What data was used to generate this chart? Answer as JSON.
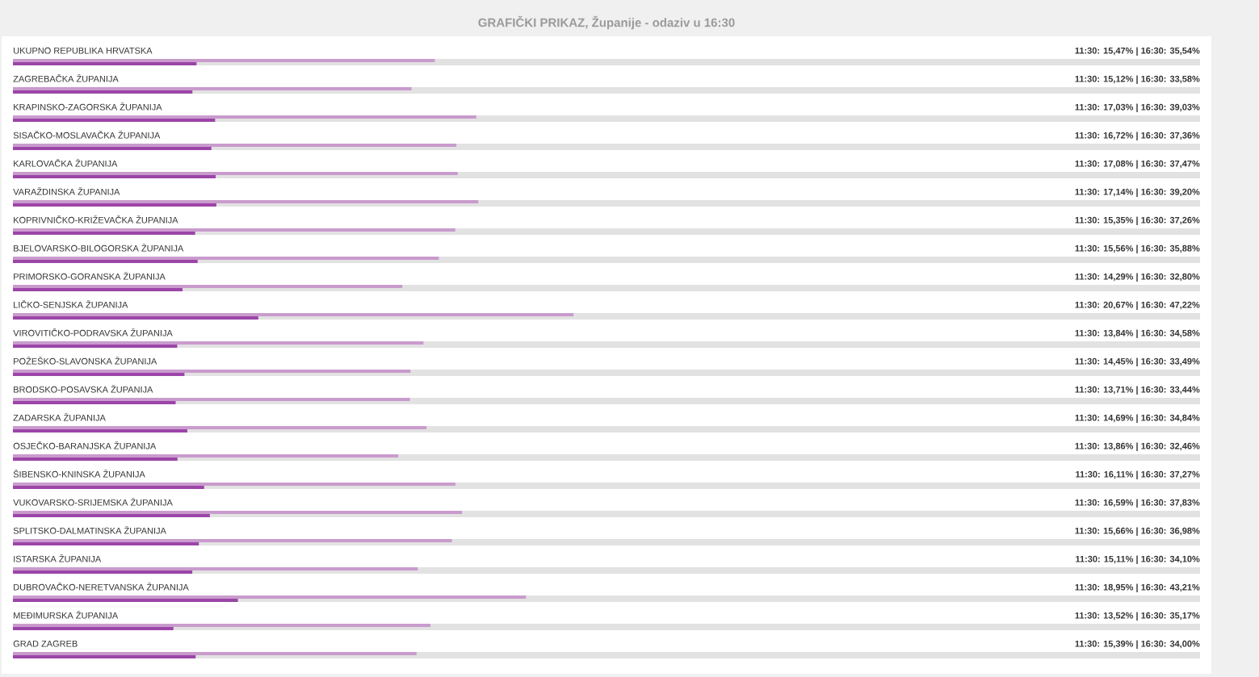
{
  "chart_data": {
    "type": "bar",
    "orientation": "horizontal",
    "title": "GRAFIČKI PRIKAZ, Županije - odaziv u 16:30",
    "categories": [
      "UKUPNO REPUBLIKA HRVATSKA",
      "ZAGREBAČKA ŽUPANIJA",
      "KRAPINSKO-ZAGORSKA ŽUPANIJA",
      "SISAČKO-MOSLAVAČKA ŽUPANIJA",
      "KARLOVAČKA ŽUPANIJA",
      "VARAŽDINSKA ŽUPANIJA",
      "KOPRIVNIČKO-KRIŽEVAČKA ŽUPANIJA",
      "BJELOVARSKO-BILOGORSKA ŽUPANIJA",
      "PRIMORSKO-GORANSKA ŽUPANIJA",
      "LIČKO-SENJSKA ŽUPANIJA",
      "VIROVITIČKO-PODRAVSKA ŽUPANIJA",
      "POŽEŠKO-SLAVONSKA ŽUPANIJA",
      "BRODSKO-POSAVSKA ŽUPANIJA",
      "ZADARSKA ŽUPANIJA",
      "OSJEČKO-BARANJSKA ŽUPANIJA",
      "ŠIBENSKO-KNINSKA ŽUPANIJA",
      "VUKOVARSKO-SRIJEMSKA ŽUPANIJA",
      "SPLITSKO-DALMATINSKA ŽUPANIJA",
      "ISTARSKA ŽUPANIJA",
      "DUBROVAČKO-NERETVANSKA ŽUPANIJA",
      "MEĐIMURSKA ŽUPANIJA",
      "GRAD ZAGREB"
    ],
    "series": [
      {
        "color": "#9c45a8",
        "values": [
          15.47,
          15.12,
          17.03,
          16.72,
          17.08,
          17.14,
          15.35,
          15.56,
          14.29,
          20.67,
          13.84,
          14.45,
          13.71,
          14.69,
          13.86,
          16.11,
          16.59,
          15.66,
          15.11,
          18.95,
          13.52,
          15.39
        ],
        "value_labels": [
          "11:30: 15,47%",
          "11:30: 15,12%",
          "11:30: 17,03%",
          "11:30: 16,72%",
          "11:30: 17,08%",
          "11:30: 17,14%",
          "11:30: 15,35%",
          "11:30: 15,56%",
          "11:30: 14,29%",
          "11:30: 20,67%",
          "11:30: 13,84%",
          "11:30: 14,45%",
          "11:30: 13,71%",
          "11:30: 14,69%",
          "11:30: 13,86%",
          "11:30: 16,11%",
          "11:30: 16,59%",
          "11:30: 15,66%",
          "11:30: 15,11%",
          "11:30: 18,95%",
          "11:30: 13,52%",
          "11:30: 15,39%"
        ]
      },
      {
        "color": "#c99bcd",
        "values": [
          35.54,
          33.58,
          39.03,
          37.36,
          37.47,
          39.2,
          37.26,
          35.88,
          32.8,
          47.22,
          34.58,
          33.49,
          33.44,
          34.84,
          32.46,
          37.27,
          37.83,
          36.98,
          34.1,
          43.21,
          35.17,
          34.0
        ],
        "value_labels": [
          "| 16:30: 35,54%",
          "| 16:30: 33,58%",
          "| 16:30: 39,03%",
          "| 16:30: 37,36%",
          "| 16:30: 37,47%",
          "| 16:30: 39,20%",
          "| 16:30: 37,26%",
          "| 16:30: 35,88%",
          "| 16:30: 32,80%",
          "| 16:30: 47,22%",
          "| 16:30: 34,58%",
          "| 16:30: 33,49%",
          "| 16:30: 33,44%",
          "| 16:30: 34,84%",
          "| 16:30: 32,46%",
          "| 16:30: 37,27%",
          "| 16:30: 37,83%",
          "| 16:30: 36,98%",
          "| 16:30: 34,10%",
          "| 16:30: 43,21%",
          "| 16:30: 35,17%",
          "| 16:30: 34,00%"
        ]
      }
    ],
    "bands": [
      {
        "axis": "x",
        "from": 0,
        "to": 100,
        "color": "#e2e2e2"
      }
    ]
  }
}
